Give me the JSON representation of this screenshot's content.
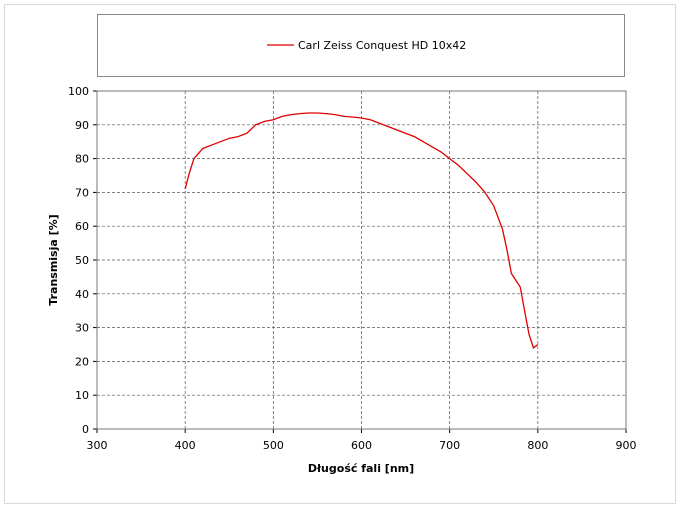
{
  "chart_data": {
    "type": "line",
    "x_label": "Długość fali [nm]",
    "y_label": "Transmisja [%]",
    "x": [
      400,
      405,
      410,
      420,
      430,
      440,
      450,
      460,
      470,
      480,
      490,
      500,
      510,
      520,
      530,
      540,
      550,
      560,
      570,
      580,
      590,
      600,
      610,
      620,
      630,
      640,
      650,
      660,
      670,
      680,
      690,
      700,
      710,
      720,
      730,
      740,
      750,
      760,
      765,
      770,
      775,
      780,
      785,
      790,
      795,
      800
    ],
    "series": [
      {
        "name": "Carl Zeiss Conquest HD 10x42",
        "color": "#e00000",
        "values": [
          71,
          76,
          80,
          83,
          84,
          85,
          86,
          86.5,
          87.5,
          90,
          91,
          91.5,
          92.5,
          93,
          93.3,
          93.5,
          93.5,
          93.3,
          93,
          92.5,
          92.3,
          92,
          91.5,
          90.5,
          89.5,
          88.5,
          87.5,
          86.5,
          85,
          83.5,
          82,
          80,
          78,
          75.5,
          73,
          70,
          66,
          59,
          53,
          46,
          44,
          42,
          35,
          28,
          24,
          25
        ]
      }
    ],
    "xlim": [
      300,
      900
    ],
    "xticks": [
      300,
      400,
      500,
      600,
      700,
      800,
      900
    ],
    "ylim": [
      0,
      100
    ],
    "yticks": [
      0,
      10,
      20,
      30,
      40,
      50,
      60,
      70,
      80,
      90,
      100
    ],
    "grid": true,
    "legend": "top"
  }
}
